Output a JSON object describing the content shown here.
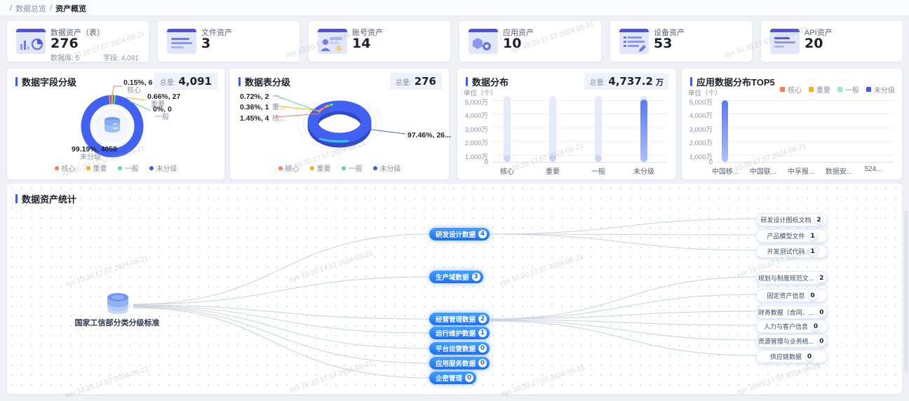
{
  "watermark_text": "xyx 10.20.17.57 2024-08-21",
  "breadcrumb": {
    "sep": "/",
    "root": "数据总览",
    "current": "资产概览"
  },
  "colors": {
    "accent": "#3D5CF5",
    "core": "#F87E56",
    "important": "#F7B014",
    "general": "#5BD8A8",
    "unclassified": "#3D5AF5"
  },
  "legend": [
    {
      "label": "核心",
      "color": "#F87E56"
    },
    {
      "label": "重要",
      "color": "#F7B014"
    },
    {
      "label": "一般",
      "color": "#5BD8A8"
    },
    {
      "label": "未分级",
      "color": "#3D5AF5"
    }
  ],
  "stat_cards": [
    {
      "title": "数据资产（表）",
      "value": "276",
      "sub": [
        {
          "label": "数据库:",
          "value": "5"
        },
        {
          "label": "字段:",
          "value": "4,091"
        }
      ]
    },
    {
      "title": "文件资产",
      "value": "3"
    },
    {
      "title": "账号资产",
      "value": "14"
    },
    {
      "title": "应用资产",
      "value": "10"
    },
    {
      "title": "设备资产",
      "value": "53"
    },
    {
      "title": "API资产",
      "value": "20"
    }
  ],
  "field_panel": {
    "title": "数据字段分级",
    "total_label": "总量:",
    "total_value": "4,091",
    "callouts": [
      {
        "value": "0.15%, 6",
        "name": "核心"
      },
      {
        "value": "0.66%, 27",
        "name": "重要"
      },
      {
        "value": "0%, 0",
        "name": "一般"
      },
      {
        "value": "99.19%, 4058",
        "name": "未分级"
      }
    ],
    "chart_data": {
      "type": "pie",
      "title": "数据字段分级",
      "total": 4091,
      "slices": [
        {
          "label": "核心",
          "value": 6,
          "pct": 0.15,
          "color": "#F87E56"
        },
        {
          "label": "重要",
          "value": 27,
          "pct": 0.66,
          "color": "#F7B014"
        },
        {
          "label": "一般",
          "value": 0,
          "pct": 0,
          "color": "#5BD8A8"
        },
        {
          "label": "未分级",
          "value": 4058,
          "pct": 99.19,
          "color": "#3D5AF5"
        }
      ]
    }
  },
  "table_panel": {
    "title": "数据表分级",
    "total_label": "总量:",
    "total_value": "276",
    "callouts": [
      {
        "value": "0.72%, 2",
        "name": "一..."
      },
      {
        "value": "0.36%, 1",
        "name": "重..."
      },
      {
        "value": "1.45%, 4",
        "name": "核..."
      },
      {
        "value": "97.46%, 26...",
        "name": ""
      }
    ],
    "chart_data": {
      "type": "pie",
      "title": "数据表分级",
      "total": 276,
      "slices": [
        {
          "label": "核心",
          "value": 4,
          "pct": 1.45,
          "color": "#F87E56"
        },
        {
          "label": "重要",
          "value": 1,
          "pct": 0.36,
          "color": "#F7B014"
        },
        {
          "label": "一般",
          "value": 2,
          "pct": 0.72,
          "color": "#5BD8A8"
        },
        {
          "label": "未分级",
          "value": 269,
          "pct": 97.46,
          "color": "#3D5AF5"
        }
      ]
    }
  },
  "distribution_panel": {
    "title": "数据分布",
    "total_label": "总量:",
    "total_value": "4,737.2",
    "total_unit": "万",
    "unit_label": "单位（个）",
    "y_ticks": [
      "5,000万",
      "4,000万",
      "3,000万",
      "2,000万",
      "1,000万",
      "0"
    ],
    "chart_data": {
      "type": "bar",
      "categories": [
        "核心",
        "重要",
        "一般",
        "未分级"
      ],
      "values_wan": [
        0,
        0,
        0,
        4737.2
      ],
      "ylim_wan": [
        0,
        5000
      ],
      "ylabel": "单位（个）"
    }
  },
  "top5_panel": {
    "title": "应用数据分布TOP5",
    "unit_label": "单位（个）",
    "y_ticks": [
      "5,000万",
      "4,000万",
      "3,000万",
      "2,000万",
      "1,000万",
      "0"
    ],
    "chart_data": {
      "type": "bar",
      "categories": [
        "中国移...",
        "中国联...",
        "中孚报...",
        "数据安...",
        "524..."
      ],
      "values_wan": [
        4700,
        0,
        0,
        0,
        0
      ],
      "ylim_wan": [
        0,
        5000
      ],
      "ylabel": "单位（个）",
      "legend": [
        "核心",
        "重要",
        "一般",
        "未分级"
      ],
      "legend_position": "top-right"
    }
  },
  "tree_panel": {
    "title": "数据资产统计",
    "root": {
      "label": "国家工信部分类分级标准"
    },
    "branches": [
      {
        "label": "研发设计数据",
        "count": "4"
      },
      {
        "label": "生产域数据",
        "count": "3"
      },
      {
        "label": "经营管理数据",
        "count": "2"
      },
      {
        "label": "运行维护数据",
        "count": "1"
      },
      {
        "label": "平台运营数据",
        "count": "0"
      },
      {
        "label": "应用服务数据",
        "count": "0"
      },
      {
        "label": "企密管理",
        "count": "0"
      }
    ],
    "leaves_rd": [
      {
        "label": "研发设计图纸文档",
        "count": "2"
      },
      {
        "label": "产品模型文件",
        "count": "1"
      },
      {
        "label": "开发测试代码",
        "count": "1"
      }
    ],
    "leaves_mgmt": [
      {
        "label": "规划与制度规范文...",
        "count": "2"
      },
      {
        "label": "固定资产信息",
        "count": "0"
      },
      {
        "label": "财务数据（合同、...",
        "count": "0"
      },
      {
        "label": "人力与客户信息",
        "count": "0"
      },
      {
        "label": "资源管理与业务统...",
        "count": "0"
      },
      {
        "label": "供应链数据",
        "count": "0"
      }
    ]
  }
}
